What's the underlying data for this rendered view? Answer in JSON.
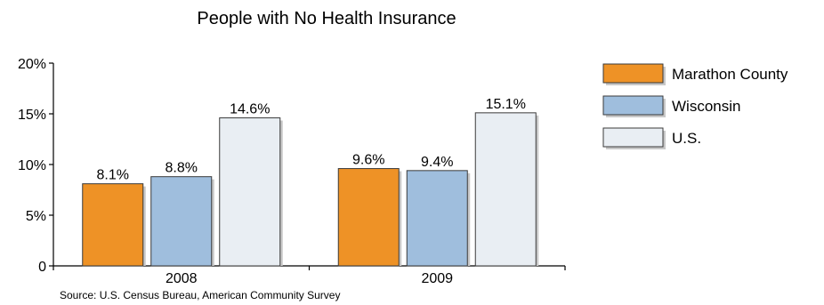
{
  "chart_data": {
    "type": "bar",
    "title": "People with No Health Insurance",
    "categories": [
      "2008",
      "2009"
    ],
    "series": [
      {
        "name": "Marathon County",
        "values": [
          8.1,
          9.6
        ],
        "labels": [
          "8.1%",
          "9.6%"
        ],
        "color": "#ee9226"
      },
      {
        "name": "Wisconsin",
        "values": [
          8.8,
          9.4
        ],
        "labels": [
          "8.8%",
          "9.4%"
        ],
        "color": "#9fbedd"
      },
      {
        "name": "U.S.",
        "values": [
          14.6,
          15.1
        ],
        "labels": [
          "14.6%",
          "15.1%"
        ],
        "color": "#e9eef3"
      }
    ],
    "ylim": [
      0,
      20
    ],
    "yticks": [
      0,
      5,
      10,
      15,
      20
    ],
    "ytick_labels": [
      "0",
      "5%",
      "10%",
      "15%",
      "20%"
    ],
    "xlabel": "",
    "ylabel": "",
    "legend_position": "top-right",
    "grid": false,
    "source": "Source: U.S. Census Bureau, American Community Survey"
  }
}
